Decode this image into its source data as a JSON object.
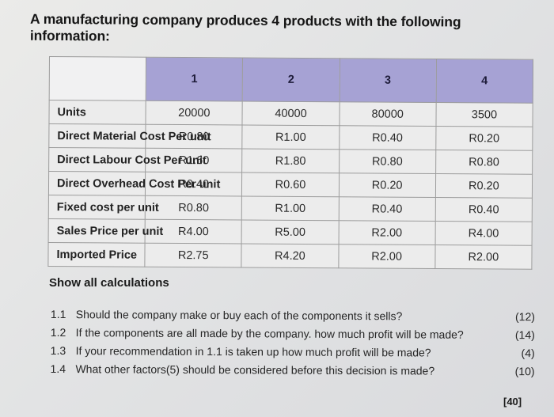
{
  "heading": "A manufacturing company produces 4 products with the following information:",
  "table": {
    "columns": [
      "1",
      "2",
      "3",
      "4"
    ],
    "rows": [
      {
        "label": "Units",
        "values": [
          "20000",
          "40000",
          "80000",
          "3500"
        ]
      },
      {
        "label": "Direct Material Cost Per unit",
        "values": [
          "R0.80",
          "R1.00",
          "R0.40",
          "R0.20"
        ]
      },
      {
        "label": "Direct Labour Cost Per unit",
        "values": [
          "R1.60",
          "R1.80",
          "R0.80",
          "R0.80"
        ]
      },
      {
        "label": "Direct Overhead Cost Per unit",
        "values": [
          "R0.40",
          "R0.60",
          "R0.20",
          "R0.20"
        ]
      },
      {
        "label": "Fixed cost per unit",
        "values": [
          "R0.80",
          "R1.00",
          "R0.40",
          "R0.40"
        ]
      },
      {
        "label": "Sales Price per unit",
        "values": [
          "R4.00",
          "R5.00",
          "R2.00",
          "R4.00"
        ]
      },
      {
        "label": "Imported Price",
        "values": [
          "R2.75",
          "R4.20",
          "R2.00",
          "R2.00"
        ]
      }
    ]
  },
  "instruction": "Show all calculations",
  "questions": [
    {
      "number": "1.1",
      "text": "Should the company make or buy each of the components it sells?",
      "marks": "(12)"
    },
    {
      "number": "1.2",
      "text": "If the components are all made by the company. how much profit will be made?",
      "marks": "(14)"
    },
    {
      "number": "1.3",
      "text": "If your recommendation in 1.1 is taken up how much profit will be made?",
      "marks": "(4)"
    },
    {
      "number": "1.4",
      "text": "What other factors(5) should be considered before this decision is made?",
      "marks": "(10)"
    }
  ],
  "total_marks": "[40]"
}
